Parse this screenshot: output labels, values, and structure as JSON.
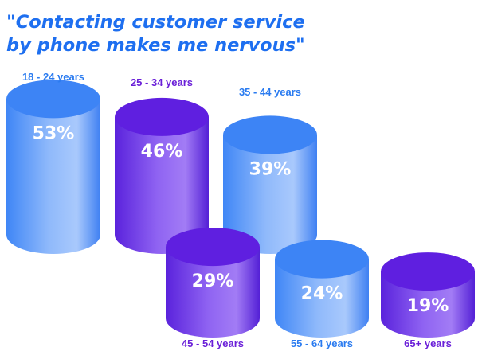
{
  "colors": {
    "title": "#1e6ff0",
    "blue": "#4a8cf7",
    "purple": "#6a2ee6",
    "blue_label": "#2a7bf0",
    "purple_label": "#6a1fd8"
  },
  "chart_data": {
    "type": "bar",
    "title_lines": [
      "\"Contacting customer service",
      "by phone makes me nervous\""
    ],
    "categories": [
      "18 - 24 years",
      "25 - 34 years",
      "35 - 44 years",
      "45 - 54 years",
      "55 - 64 years",
      "65+ years"
    ],
    "values": [
      53,
      46,
      39,
      29,
      24,
      19
    ],
    "value_labels": [
      "53%",
      "46%",
      "39%",
      "29%",
      "24%",
      "19%"
    ],
    "bar_colors": [
      "blue",
      "purple",
      "blue",
      "purple",
      "blue",
      "purple"
    ],
    "unit": "%"
  }
}
